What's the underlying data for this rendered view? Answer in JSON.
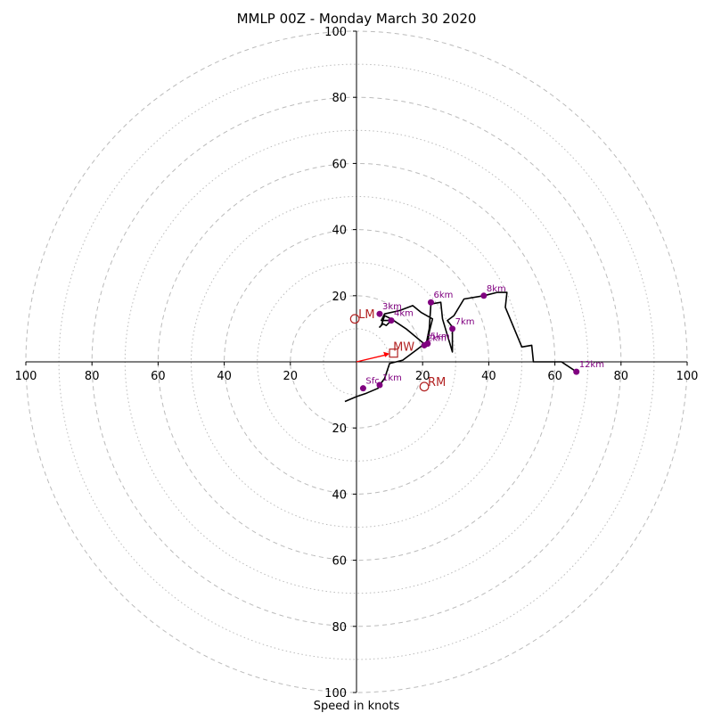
{
  "chart_data": {
    "type": "hodograph",
    "title": "MMLP 00Z - Monday March 30 2020",
    "xlabel": "Speed in knots",
    "units": "knots",
    "max_speed": 100,
    "ring_step": 10,
    "ring_labels": [
      20,
      40,
      60,
      80,
      100
    ],
    "x_tick_labels": [
      "100",
      "80",
      "60",
      "40",
      "20",
      "20",
      "40",
      "60",
      "80",
      "100"
    ],
    "y_tick_labels_upper": [
      "20",
      "40",
      "60",
      "80",
      "100"
    ],
    "y_tick_labels_lower": [
      "20",
      "40",
      "60",
      "80",
      "100"
    ],
    "trace_uv": [
      [
        -3.5,
        -12
      ],
      [
        0,
        -10.5
      ],
      [
        3,
        -9.5
      ],
      [
        6.5,
        -8
      ],
      [
        7,
        -7
      ],
      [
        8.5,
        -5
      ],
      [
        10,
        -0.5
      ],
      [
        14,
        0.5
      ],
      [
        18,
        3.5
      ],
      [
        20,
        5
      ],
      [
        21.5,
        5.5
      ],
      [
        22,
        9
      ],
      [
        23,
        13
      ],
      [
        19.5,
        15
      ],
      [
        17,
        17
      ],
      [
        13,
        15.5
      ],
      [
        8.5,
        14.5
      ],
      [
        7.5,
        12.5
      ],
      [
        10.5,
        12.5
      ],
      [
        9,
        11
      ],
      [
        8,
        11.5
      ],
      [
        7,
        10.5
      ],
      [
        7.5,
        11
      ],
      [
        8.5,
        14
      ],
      [
        10.5,
        13
      ],
      [
        15,
        10
      ],
      [
        21,
        5
      ],
      [
        22,
        10
      ],
      [
        22.5,
        17.5
      ],
      [
        25.5,
        18
      ],
      [
        26,
        13
      ],
      [
        29,
        3
      ],
      [
        29,
        10.5
      ],
      [
        27.5,
        12.5
      ],
      [
        29.5,
        14
      ],
      [
        32.5,
        19
      ],
      [
        38.5,
        20
      ],
      [
        42.5,
        21
      ],
      [
        45.5,
        21
      ],
      [
        45,
        16.5
      ],
      [
        50,
        4.5
      ],
      [
        53,
        5
      ],
      [
        53.5,
        0
      ],
      [
        62,
        0
      ],
      [
        66.5,
        -3
      ]
    ],
    "height_markers": [
      {
        "label": "Sfc",
        "u": 2,
        "v": -8
      },
      {
        "label": "1km",
        "u": 7,
        "v": -7
      },
      {
        "label": "2km",
        "u": 20.5,
        "v": 5
      },
      {
        "label": "3km",
        "u": 7,
        "v": 14.5
      },
      {
        "label": "4km",
        "u": 10.5,
        "v": 12.5
      },
      {
        "label": "5km",
        "u": 21.5,
        "v": 5.5
      },
      {
        "label": "6km",
        "u": 22.5,
        "v": 18
      },
      {
        "label": "7km",
        "u": 29,
        "v": 10
      },
      {
        "label": "8km",
        "u": 38.5,
        "v": 20
      },
      {
        "label": "12km",
        "u": 66.5,
        "v": -3
      }
    ],
    "storm_motion": {
      "lm": {
        "label": "LM",
        "u": -0.5,
        "v": 13
      },
      "rm": {
        "label": "RM",
        "u": 20.5,
        "v": -7.5
      },
      "mw": {
        "label": "MW",
        "u": 10,
        "v": 2.5
      }
    },
    "colors": {
      "trace": "#000000",
      "height_marker": "#800080",
      "storm_motion": "#b22222",
      "mean_wind_arrow": "#ff0000",
      "rings": "#bbbbbb"
    }
  }
}
